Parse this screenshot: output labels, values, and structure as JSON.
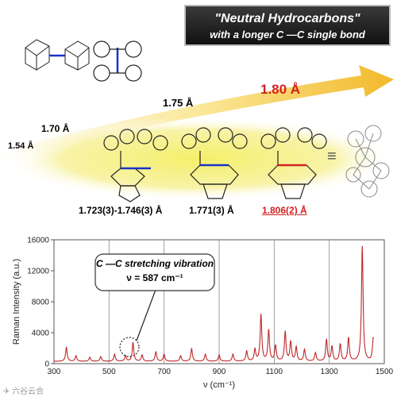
{
  "header": {
    "title_line1": "\"Neutral Hydrocarbons\"",
    "title_line2": "with a longer C —C single bond"
  },
  "arrow": {
    "labels": [
      "1.54 Å",
      "1.70 Å",
      "1.75 Å",
      "1.80 Å"
    ],
    "accent_color": "#d42020"
  },
  "molecules": {
    "bond_lengths": [
      "1.723(3)-1.746(3) Å",
      "1.771(3) Å",
      "1.806(2) Å"
    ],
    "equals_sign": "≡",
    "bond_colors": [
      "#1a32c8",
      "#1a32c8",
      "#d42020"
    ]
  },
  "annotation": {
    "line1": "C —C stretching vibration",
    "line2": "ν = 587 cm⁻¹"
  },
  "watermark": "✈ 六谷云合",
  "chart_data": {
    "type": "line",
    "xlabel": "ν (cm⁻¹)",
    "ylabel": "Raman Intensity (a.u.)",
    "xlim": [
      300,
      1500
    ],
    "ylim": [
      0,
      16000
    ],
    "xticks": [
      300,
      500,
      700,
      900,
      1100,
      1300,
      1500
    ],
    "yticks": [
      0,
      4000,
      8000,
      12000,
      16000
    ],
    "grid": "vertical",
    "line_color": "#c0282a",
    "baseline": 300,
    "peaks": [
      {
        "x": 345,
        "y": 1800
      },
      {
        "x": 380,
        "y": 700
      },
      {
        "x": 430,
        "y": 500
      },
      {
        "x": 470,
        "y": 600
      },
      {
        "x": 520,
        "y": 900
      },
      {
        "x": 560,
        "y": 700
      },
      {
        "x": 587,
        "y": 2400
      },
      {
        "x": 620,
        "y": 800
      },
      {
        "x": 670,
        "y": 1200
      },
      {
        "x": 700,
        "y": 900
      },
      {
        "x": 760,
        "y": 700
      },
      {
        "x": 800,
        "y": 1600
      },
      {
        "x": 850,
        "y": 900
      },
      {
        "x": 900,
        "y": 800
      },
      {
        "x": 950,
        "y": 900
      },
      {
        "x": 1000,
        "y": 1300
      },
      {
        "x": 1030,
        "y": 1500
      },
      {
        "x": 1052,
        "y": 6000
      },
      {
        "x": 1080,
        "y": 4000
      },
      {
        "x": 1105,
        "y": 2000
      },
      {
        "x": 1140,
        "y": 3800
      },
      {
        "x": 1160,
        "y": 2500
      },
      {
        "x": 1180,
        "y": 1800
      },
      {
        "x": 1210,
        "y": 1500
      },
      {
        "x": 1250,
        "y": 1100
      },
      {
        "x": 1290,
        "y": 2800
      },
      {
        "x": 1310,
        "y": 1900
      },
      {
        "x": 1340,
        "y": 2200
      },
      {
        "x": 1370,
        "y": 3000
      },
      {
        "x": 1420,
        "y": 14800
      },
      {
        "x": 1460,
        "y": 3000
      }
    ]
  }
}
